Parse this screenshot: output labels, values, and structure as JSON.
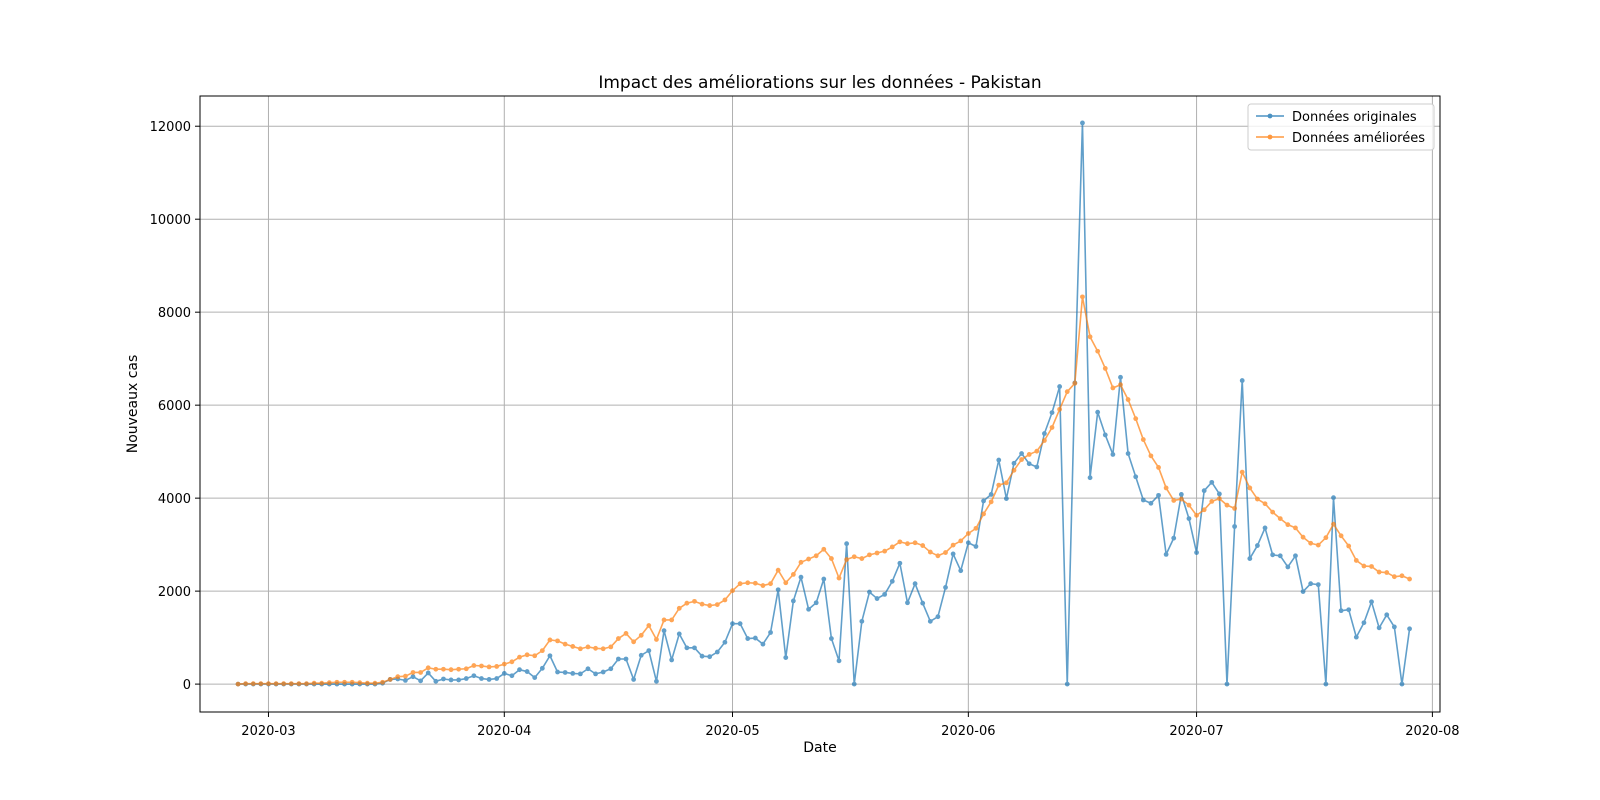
{
  "chart_data": {
    "type": "line",
    "title": "Impact des améliorations sur les données - Pakistan",
    "xlabel": "Date",
    "ylabel": "Nouveaux cas",
    "x_start_date": "2020-02-26",
    "xlim": [
      "2020-02-21",
      "2020-08-02"
    ],
    "ylim": [
      -600,
      12650
    ],
    "xticks": [
      "2020-03",
      "2020-04",
      "2020-05",
      "2020-06",
      "2020-07",
      "2020-08"
    ],
    "yticks": [
      0,
      2000,
      4000,
      6000,
      8000,
      10000,
      12000
    ],
    "grid": true,
    "legend_position": "top-right",
    "series": [
      {
        "name": "Données originales",
        "color": "#1f77b4",
        "values": [
          0,
          0,
          0,
          0,
          0,
          0,
          0,
          0,
          0,
          0,
          0,
          0,
          0,
          0,
          0,
          0,
          0,
          0,
          0,
          20,
          100,
          110,
          80,
          160,
          70,
          240,
          60,
          110,
          90,
          90,
          120,
          180,
          120,
          100,
          120,
          230,
          180,
          310,
          270,
          140,
          340,
          610,
          260,
          250,
          230,
          220,
          330,
          220,
          260,
          330,
          540,
          540,
          100,
          620,
          720,
          60,
          1150,
          520,
          1080,
          780,
          780,
          600,
          590,
          690,
          900,
          1300,
          1300,
          980,
          990,
          860,
          1110,
          2030,
          570,
          1790,
          2300,
          1610,
          1750,
          2260,
          980,
          500,
          3020,
          0,
          1350,
          1980,
          1840,
          1930,
          2210,
          2600,
          1750,
          2160,
          1740,
          1350,
          1450,
          2080,
          2800,
          2440,
          3040,
          2960,
          3940,
          4080,
          4820,
          3990,
          4750,
          4960,
          4740,
          4670,
          5390,
          5840,
          6400,
          0,
          6480,
          12070,
          4440,
          5850,
          5360,
          4940,
          6600,
          4960,
          4460,
          3960,
          3890,
          4060,
          2790,
          3140,
          4080,
          3560,
          2830,
          4160,
          4340,
          4090,
          0,
          3390,
          6530,
          2700,
          2980,
          3360,
          2780,
          2760,
          2520,
          2760,
          1990,
          2160,
          2140,
          0,
          4010,
          1580,
          1600,
          1010,
          1320,
          1770,
          1210,
          1490,
          1230,
          0,
          1190
        ]
      },
      {
        "name": "Données améliorées",
        "color": "#ff7f0e",
        "values": [
          0,
          10,
          10,
          10,
          10,
          10,
          10,
          10,
          10,
          10,
          20,
          20,
          30,
          40,
          40,
          40,
          30,
          20,
          20,
          40,
          100,
          160,
          170,
          250,
          250,
          350,
          320,
          320,
          310,
          320,
          330,
          400,
          390,
          370,
          380,
          430,
          480,
          580,
          630,
          610,
          720,
          950,
          930,
          860,
          810,
          760,
          800,
          770,
          760,
          800,
          980,
          1090,
          910,
          1050,
          1260,
          960,
          1380,
          1380,
          1630,
          1740,
          1780,
          1720,
          1690,
          1710,
          1810,
          2010,
          2160,
          2180,
          2170,
          2120,
          2160,
          2450,
          2180,
          2360,
          2620,
          2690,
          2760,
          2900,
          2700,
          2280,
          2680,
          2740,
          2700,
          2780,
          2820,
          2860,
          2950,
          3060,
          3020,
          3040,
          2980,
          2840,
          2760,
          2830,
          2990,
          3080,
          3240,
          3350,
          3660,
          3920,
          4280,
          4330,
          4600,
          4830,
          4940,
          5010,
          5240,
          5520,
          5910,
          6290,
          6470,
          8330,
          7470,
          7160,
          6790,
          6370,
          6440,
          6120,
          5710,
          5260,
          4910,
          4660,
          4220,
          3950,
          3980,
          3850,
          3630,
          3750,
          3930,
          3990,
          3850,
          3780,
          4560,
          4220,
          3980,
          3880,
          3700,
          3560,
          3430,
          3360,
          3160,
          3030,
          2990,
          3150,
          3440,
          3190,
          2970,
          2660,
          2540,
          2530,
          2410,
          2400,
          2310,
          2330,
          2260
        ]
      }
    ]
  }
}
